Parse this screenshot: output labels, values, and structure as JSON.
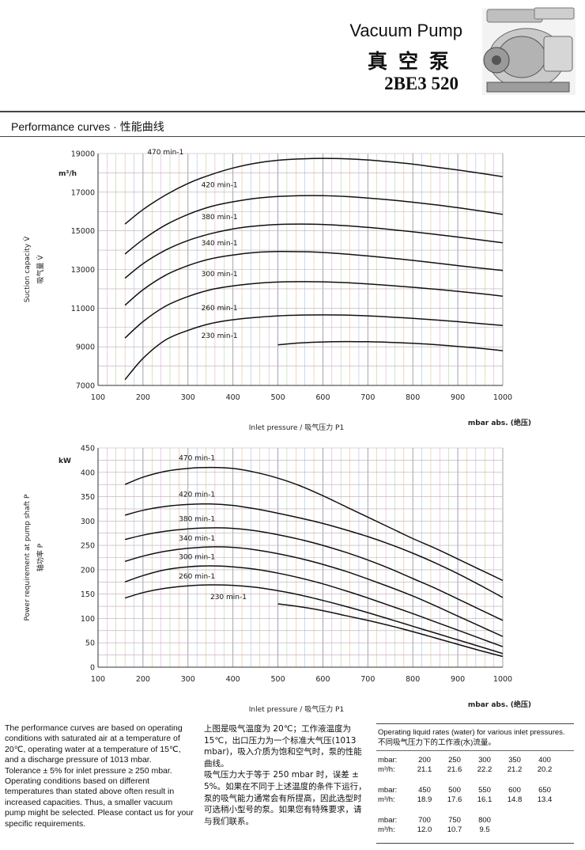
{
  "header": {
    "title_en": "Vacuum Pump",
    "title_zh": "真空泵",
    "model": "2BE3 520",
    "photo_icon": "vacuum-pump-photo"
  },
  "section": {
    "title": "Performance curves · 性能曲线"
  },
  "chart_data": [
    {
      "type": "line",
      "ylabel_en": "Suction capacity V̇",
      "ylabel_zh": "吸气量 V̇",
      "y_unit": "m³/h",
      "xlabel": "Inlet pressure / 吸气压力 P1",
      "x_unit": "mbar abs. (绝压)",
      "xlim": [
        100,
        1000
      ],
      "ylim": [
        7000,
        19000
      ],
      "x_ticks": [
        100,
        200,
        300,
        400,
        500,
        600,
        700,
        800,
        900,
        1000
      ],
      "y_ticks": [
        7000,
        9000,
        11000,
        13000,
        15000,
        17000,
        19000
      ],
      "grid": true,
      "series": [
        {
          "name": "470 min-1",
          "x": [
            160,
            200,
            250,
            300,
            350,
            400,
            450,
            500,
            550,
            600,
            650,
            700,
            750,
            800,
            850,
            900,
            950,
            1000
          ],
          "y": [
            15350,
            16100,
            16850,
            17450,
            17900,
            18250,
            18500,
            18650,
            18720,
            18750,
            18730,
            18670,
            18570,
            18450,
            18300,
            18150,
            17980,
            17800
          ]
        },
        {
          "name": "420 min-1",
          "x": [
            160,
            200,
            250,
            300,
            350,
            400,
            450,
            500,
            550,
            600,
            650,
            700,
            750,
            800,
            850,
            900,
            950,
            1000
          ],
          "y": [
            13800,
            14550,
            15300,
            15850,
            16250,
            16500,
            16680,
            16780,
            16820,
            16820,
            16780,
            16700,
            16600,
            16480,
            16350,
            16200,
            16030,
            15850
          ]
        },
        {
          "name": "380 min-1",
          "x": [
            160,
            200,
            250,
            300,
            350,
            400,
            450,
            500,
            550,
            600,
            650,
            700,
            750,
            800,
            850,
            900,
            950,
            1000
          ],
          "y": [
            12550,
            13300,
            14000,
            14500,
            14850,
            15100,
            15250,
            15330,
            15350,
            15330,
            15270,
            15180,
            15070,
            14950,
            14820,
            14680,
            14530,
            14380
          ]
        },
        {
          "name": "340 min-1",
          "x": [
            160,
            200,
            250,
            300,
            350,
            400,
            450,
            500,
            550,
            600,
            650,
            700,
            750,
            800,
            850,
            900,
            950,
            1000
          ],
          "y": [
            11150,
            11950,
            12700,
            13200,
            13550,
            13750,
            13880,
            13930,
            13920,
            13880,
            13800,
            13700,
            13590,
            13470,
            13340,
            13200,
            13070,
            12950
          ]
        },
        {
          "name": "300 min-1",
          "x": [
            160,
            200,
            250,
            300,
            350,
            400,
            450,
            500,
            550,
            600,
            650,
            700,
            750,
            800,
            850,
            900,
            950,
            1000
          ],
          "y": [
            9450,
            10300,
            11100,
            11600,
            11950,
            12150,
            12280,
            12350,
            12370,
            12360,
            12320,
            12250,
            12170,
            12080,
            11980,
            11870,
            11750,
            11620
          ]
        },
        {
          "name": "260 min-1",
          "x": [
            160,
            200,
            250,
            300,
            350,
            400,
            450,
            500,
            550,
            600,
            650,
            700,
            750,
            800,
            850,
            900,
            950,
            1000
          ],
          "y": [
            7300,
            8400,
            9350,
            9850,
            10200,
            10400,
            10520,
            10600,
            10640,
            10650,
            10640,
            10600,
            10540,
            10470,
            10390,
            10300,
            10200,
            10100
          ]
        },
        {
          "name": "230 min-1",
          "x": [
            500,
            550,
            600,
            650,
            700,
            750,
            800,
            850,
            900,
            950,
            1000
          ],
          "y": [
            9100,
            9200,
            9250,
            9270,
            9260,
            9230,
            9180,
            9110,
            9020,
            8920,
            8800
          ]
        }
      ],
      "labels_at_x": [
        {
          "name": "470 min-1",
          "x": 250,
          "y": 18950
        },
        {
          "name": "420 min-1",
          "x": 370,
          "y": 17250
        },
        {
          "name": "380 min-1",
          "x": 370,
          "y": 15600
        },
        {
          "name": "340 min-1",
          "x": 370,
          "y": 14250
        },
        {
          "name": "300 min-1",
          "x": 370,
          "y": 12650
        },
        {
          "name": "260 min-1",
          "x": 370,
          "y": 10900
        },
        {
          "name": "230 min-1",
          "x": 370,
          "y": 9450
        }
      ]
    },
    {
      "type": "line",
      "ylabel_en": "Power requirement at pump shaft P",
      "ylabel_zh": "轴功率 P",
      "y_unit": "kW",
      "xlabel": "Inlet pressure / 吸气压力 P1",
      "x_unit": "mbar abs. (绝压)",
      "xlim": [
        100,
        1000
      ],
      "ylim": [
        0,
        450
      ],
      "x_ticks": [
        100,
        200,
        300,
        400,
        500,
        600,
        700,
        800,
        900,
        1000
      ],
      "y_ticks": [
        0,
        50,
        100,
        150,
        200,
        250,
        300,
        350,
        400,
        450
      ],
      "grid": true,
      "series": [
        {
          "name": "470 min-1",
          "x": [
            160,
            200,
            250,
            300,
            350,
            400,
            450,
            500,
            550,
            600,
            650,
            700,
            750,
            800,
            850,
            900,
            950,
            1000
          ],
          "y": [
            375,
            390,
            402,
            408,
            410,
            408,
            400,
            388,
            372,
            352,
            330,
            308,
            286,
            264,
            244,
            222,
            200,
            178
          ]
        },
        {
          "name": "420 min-1",
          "x": [
            160,
            200,
            250,
            300,
            350,
            400,
            450,
            500,
            550,
            600,
            650,
            700,
            750,
            800,
            850,
            900,
            950,
            1000
          ],
          "y": [
            312,
            322,
            330,
            334,
            335,
            332,
            325,
            316,
            306,
            295,
            282,
            268,
            252,
            234,
            214,
            192,
            168,
            143
          ]
        },
        {
          "name": "380 min-1",
          "x": [
            160,
            200,
            250,
            300,
            350,
            400,
            450,
            500,
            550,
            600,
            650,
            700,
            750,
            800,
            850,
            900,
            950,
            1000
          ],
          "y": [
            262,
            271,
            279,
            284,
            286,
            285,
            280,
            272,
            262,
            250,
            236,
            220,
            202,
            182,
            162,
            140,
            118,
            96
          ]
        },
        {
          "name": "340 min-1",
          "x": [
            160,
            200,
            250,
            300,
            350,
            400,
            450,
            500,
            550,
            600,
            650,
            700,
            750,
            800,
            850,
            900,
            950,
            1000
          ],
          "y": [
            217,
            228,
            238,
            244,
            247,
            246,
            241,
            233,
            223,
            211,
            197,
            181,
            164,
            146,
            126,
            105,
            84,
            63
          ]
        },
        {
          "name": "300 min-1",
          "x": [
            160,
            200,
            250,
            300,
            350,
            400,
            450,
            500,
            550,
            600,
            650,
            700,
            750,
            800,
            850,
            900,
            950,
            1000
          ],
          "y": [
            175,
            188,
            200,
            206,
            208,
            206,
            201,
            193,
            183,
            171,
            157,
            142,
            126,
            110,
            93,
            76,
            59,
            42
          ]
        },
        {
          "name": "260 min-1",
          "x": [
            160,
            200,
            250,
            300,
            350,
            400,
            450,
            500,
            550,
            600,
            650,
            700,
            750,
            800,
            850,
            900,
            950,
            1000
          ],
          "y": [
            142,
            153,
            162,
            167,
            169,
            168,
            164,
            157,
            148,
            137,
            125,
            112,
            98,
            84,
            70,
            56,
            42,
            28
          ]
        },
        {
          "name": "230 min-1",
          "x": [
            500,
            550,
            600,
            650,
            700,
            750,
            800,
            850,
            900,
            950,
            1000
          ],
          "y": [
            130,
            124,
            116,
            106,
            96,
            85,
            73,
            60,
            47,
            34,
            22
          ]
        }
      ],
      "labels_at_x": [
        {
          "name": "470 min-1",
          "x": 320,
          "y": 425
        },
        {
          "name": "420 min-1",
          "x": 320,
          "y": 350
        },
        {
          "name": "380 min-1",
          "x": 320,
          "y": 300
        },
        {
          "name": "340 min-1",
          "x": 320,
          "y": 260
        },
        {
          "name": "300 min-1",
          "x": 320,
          "y": 222
        },
        {
          "name": "260 min-1",
          "x": 320,
          "y": 182
        },
        {
          "name": "230 min-1",
          "x": 390,
          "y": 140
        }
      ]
    }
  ],
  "notes": {
    "en": [
      "The performance curves are based on operating conditions with saturated air at a temperature of 20℃, operating water at a temperature of 15℃, and a discharge pressure of 1013 mbar.",
      "Tolerance ± 5% for inlet pressure ≥ 250 mbar.",
      "Operating conditions based on different temperatures than stated above often result in increased capacities. Thus, a smaller vacuum pump might be selected. Please contact us for your specific requirements."
    ],
    "zh": [
      "上图是吸气温度为 20℃；工作液温度为 15℃，出口压力为一个标准大气压(1013 mbar)，吸入介质为饱和空气时，泵的性能曲线。",
      "吸气压力大于等于 250 mbar 时，误差 ± 5%。如果在不同于上述温度的条件下运行，泵的吸气能力通常会有所提高，因此选型时可选稍小型号的泵。如果您有特殊要求，请与我们联系。"
    ]
  },
  "liquid_rates": {
    "title_en": "Operating liquid rates (water) for various inlet pressures.",
    "title_zh": "不同吸气压力下的工作液(水)流量。",
    "mbar_label": "mbar:",
    "flow_label": "m³/h:",
    "groups": [
      {
        "mbar": [
          "200",
          "250",
          "300",
          "350",
          "400"
        ],
        "flow": [
          "21.1",
          "21.6",
          "22.2",
          "21.2",
          "20.2"
        ]
      },
      {
        "mbar": [
          "450",
          "500",
          "550",
          "600",
          "650"
        ],
        "flow": [
          "18.9",
          "17.6",
          "16.1",
          "14.8",
          "13.4"
        ]
      },
      {
        "mbar": [
          "700",
          "750",
          "800"
        ],
        "flow": [
          "12.0",
          "10.7",
          "9.5"
        ]
      }
    ]
  }
}
